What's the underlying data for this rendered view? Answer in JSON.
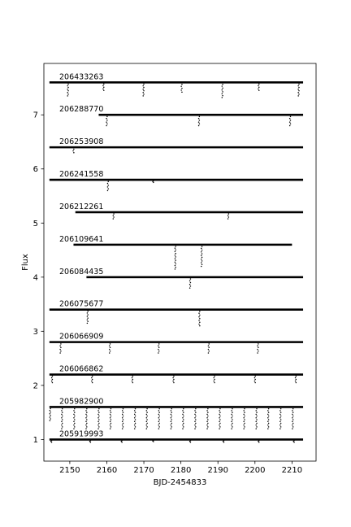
{
  "chart_data": {
    "type": "scatter",
    "title": "",
    "xlabel": "BJD-2454833",
    "ylabel": "Flux",
    "xlim": [
      2143.0,
      2216.5
    ],
    "ylim": [
      0.6,
      7.95
    ],
    "xticks": [
      2150,
      2160,
      2170,
      2180,
      2190,
      2200,
      2210
    ],
    "yticks": [
      1,
      2,
      3,
      4,
      5,
      6,
      7
    ],
    "grid": false,
    "legend": "none",
    "marker_color": "#000000",
    "series": [
      {
        "name": "206433263",
        "baseline": 7.6,
        "x_start": 2144.5,
        "x_end": 2213.0,
        "dips": [
          [
            2149.5,
            7.35
          ],
          [
            2159.1,
            7.45
          ],
          [
            2169.9,
            7.35
          ],
          [
            2180.2,
            7.42
          ],
          [
            2191.2,
            7.32
          ],
          [
            2201.0,
            7.45
          ],
          [
            2211.8,
            7.35
          ]
        ]
      },
      {
        "name": "206288770",
        "baseline": 7.0,
        "x_start": 2157.8,
        "x_end": 2213.0,
        "dips": [
          [
            2160.0,
            6.8
          ],
          [
            2184.9,
            6.8
          ],
          [
            2209.5,
            6.8
          ]
        ]
      },
      {
        "name": "206253908",
        "baseline": 6.4,
        "x_start": 2144.5,
        "x_end": 2213.0,
        "dips": [
          [
            2151.0,
            6.3
          ]
        ]
      },
      {
        "name": "206241558",
        "baseline": 5.8,
        "x_start": 2144.5,
        "x_end": 2213.0,
        "dips": [
          [
            2160.3,
            5.6
          ],
          [
            2172.5,
            5.75
          ]
        ]
      },
      {
        "name": "206212261",
        "baseline": 5.2,
        "x_start": 2151.5,
        "x_end": 2213.0,
        "dips": [
          [
            2161.8,
            5.08
          ],
          [
            2192.8,
            5.08
          ]
        ]
      },
      {
        "name": "206109641",
        "baseline": 4.6,
        "x_start": 2151.0,
        "x_end": 2210.0,
        "dips": [
          [
            2178.5,
            4.15
          ],
          [
            2185.6,
            4.2
          ]
        ]
      },
      {
        "name": "206084435",
        "baseline": 4.0,
        "x_start": 2154.5,
        "x_end": 2213.0,
        "dips": [
          [
            2182.5,
            3.8
          ]
        ]
      },
      {
        "name": "206075677",
        "baseline": 3.4,
        "x_start": 2144.5,
        "x_end": 2213.0,
        "dips": [
          [
            2154.8,
            3.15
          ],
          [
            2185.0,
            3.1
          ]
        ]
      },
      {
        "name": "206066909",
        "baseline": 2.8,
        "x_start": 2144.5,
        "x_end": 2213.0,
        "dips": [
          [
            2147.5,
            2.6
          ],
          [
            2160.8,
            2.6
          ],
          [
            2174.0,
            2.6
          ],
          [
            2187.5,
            2.6
          ],
          [
            2200.8,
            2.6
          ]
        ]
      },
      {
        "name": "206066862",
        "baseline": 2.2,
        "x_start": 2144.5,
        "x_end": 2213.0,
        "dips": [
          [
            2145.2,
            2.05
          ],
          [
            2156.0,
            2.05
          ],
          [
            2166.9,
            2.05
          ],
          [
            2178.0,
            2.05
          ],
          [
            2189.0,
            2.05
          ],
          [
            2200.0,
            2.05
          ],
          [
            2211.0,
            2.05
          ]
        ]
      },
      {
        "name": "205982900",
        "baseline": 1.6,
        "x_start": 2144.5,
        "x_end": 2213.0,
        "dips": [
          [
            2144.7,
            1.35
          ],
          [
            2147.9,
            1.2
          ],
          [
            2151.2,
            1.2
          ],
          [
            2154.5,
            1.2
          ],
          [
            2157.8,
            1.2
          ],
          [
            2161.0,
            1.2
          ],
          [
            2164.3,
            1.2
          ],
          [
            2167.6,
            1.2
          ],
          [
            2170.8,
            1.2
          ],
          [
            2174.1,
            1.2
          ],
          [
            2177.4,
            1.2
          ],
          [
            2180.6,
            1.2
          ],
          [
            2183.9,
            1.2
          ],
          [
            2187.2,
            1.2
          ],
          [
            2190.5,
            1.2
          ],
          [
            2193.8,
            1.2
          ],
          [
            2197.1,
            1.2
          ],
          [
            2200.4,
            1.2
          ],
          [
            2203.6,
            1.2
          ],
          [
            2206.9,
            1.2
          ],
          [
            2210.2,
            1.2
          ]
        ]
      },
      {
        "name": "205919993",
        "baseline": 1.0,
        "x_start": 2144.5,
        "x_end": 2213.0,
        "dips": [
          [
            2145.0,
            0.95
          ],
          [
            2155.5,
            0.95
          ],
          [
            2164.0,
            0.95
          ],
          [
            2172.5,
            0.96
          ],
          [
            2182.5,
            0.95
          ],
          [
            2191.5,
            0.95
          ],
          [
            2201.0,
            0.95
          ],
          [
            2210.5,
            0.95
          ]
        ]
      }
    ]
  }
}
